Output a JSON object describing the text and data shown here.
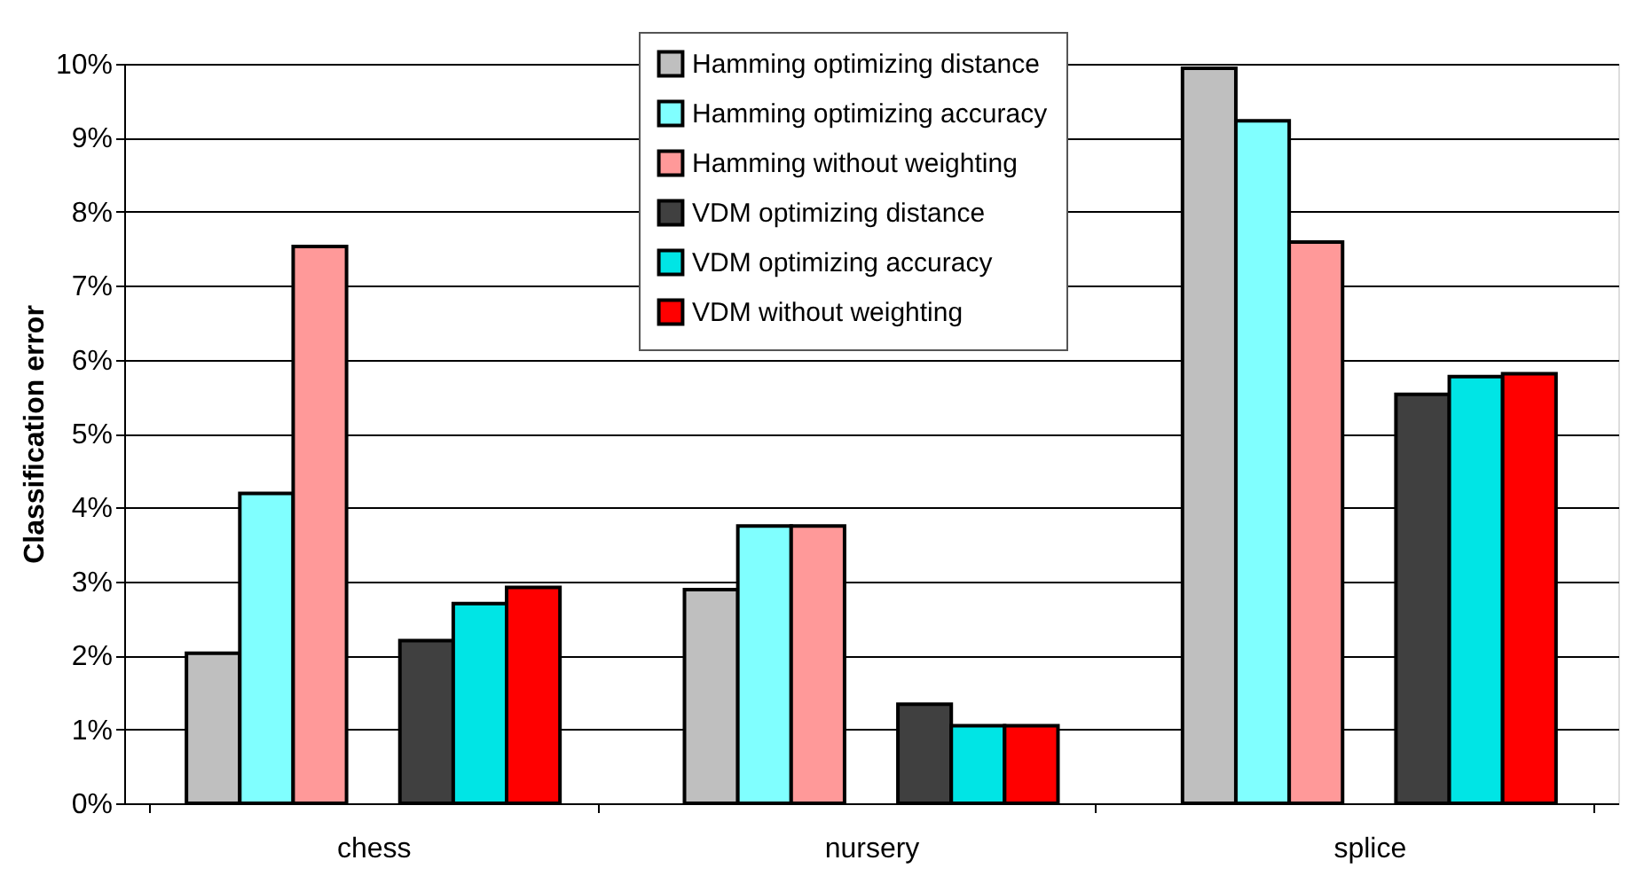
{
  "chart_data": {
    "type": "bar",
    "ylabel": "Classification error",
    "categories": [
      "chess",
      "nursery",
      "splice"
    ],
    "series": [
      {
        "name": "Hamming optimizing distance",
        "color": "#bfbfbf",
        "values": [
          2.03,
          2.89,
          9.94
        ]
      },
      {
        "name": "Hamming optimizing accuracy",
        "color": "#80ffff",
        "values": [
          4.19,
          3.75,
          9.23
        ]
      },
      {
        "name": "Hamming without weighting",
        "color": "#ff9999",
        "values": [
          7.53,
          3.75,
          7.59
        ]
      },
      {
        "name": "VDM optimizing distance",
        "color": "#404040",
        "values": [
          2.2,
          1.34,
          5.53
        ]
      },
      {
        "name": "VDM optimizing accuracy",
        "color": "#00e5e5",
        "values": [
          2.7,
          1.05,
          5.77
        ]
      },
      {
        "name": "VDM without weighting",
        "color": "#ff0000",
        "values": [
          2.92,
          1.05,
          5.81
        ]
      }
    ],
    "ylim": [
      0,
      10
    ],
    "yticks": [
      {
        "value": 0,
        "label": "0%"
      },
      {
        "value": 1,
        "label": "1%"
      },
      {
        "value": 2,
        "label": "2%"
      },
      {
        "value": 3,
        "label": "3%"
      },
      {
        "value": 4,
        "label": "4%"
      },
      {
        "value": 5,
        "label": "5%"
      },
      {
        "value": 6,
        "label": "6%"
      },
      {
        "value": 7,
        "label": "7%"
      },
      {
        "value": 8,
        "label": "8%"
      },
      {
        "value": 9,
        "label": "9%"
      },
      {
        "value": 10,
        "label": "10%"
      }
    ],
    "grid": "y",
    "legend": "top"
  }
}
